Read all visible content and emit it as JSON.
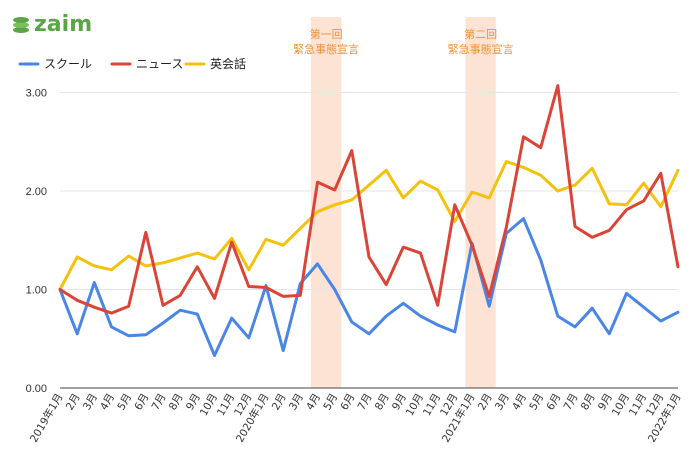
{
  "brand": {
    "name": "zaim"
  },
  "colors": {
    "school": "#4a86e8",
    "news": "#db4437",
    "eikaiwa": "#f4c20d",
    "band": "#fde3d4",
    "band_text": "#f0903a",
    "grid": "#e6e6e6",
    "logo": "#5aa545"
  },
  "chart_data": {
    "type": "line",
    "categories": [
      "2019年1月",
      "2月",
      "3月",
      "4月",
      "5月",
      "6月",
      "7月",
      "8月",
      "9月",
      "10月",
      "11月",
      "12月",
      "2020年1月",
      "2月",
      "3月",
      "4月",
      "5月",
      "6月",
      "7月",
      "8月",
      "9月",
      "10月",
      "11月",
      "12月",
      "2021年1月",
      "2月",
      "3月",
      "4月",
      "5月",
      "6月",
      "7月",
      "8月",
      "9月",
      "10月",
      "11月",
      "12月",
      "2022年1月"
    ],
    "series": [
      {
        "name": "スクール",
        "color": "#4a86e8",
        "values": [
          1.0,
          0.55,
          1.07,
          0.62,
          0.53,
          0.54,
          0.66,
          0.79,
          0.75,
          0.33,
          0.71,
          0.51,
          1.04,
          0.38,
          1.06,
          1.26,
          1.0,
          0.67,
          0.55,
          0.73,
          0.86,
          0.73,
          0.64,
          0.57,
          1.47,
          0.83,
          1.57,
          1.72,
          1.3,
          0.73,
          0.62,
          0.81,
          0.55,
          0.96,
          0.82,
          0.68,
          0.77
        ]
      },
      {
        "name": "ニュース",
        "color": "#db4437",
        "values": [
          1.0,
          0.89,
          0.82,
          0.76,
          0.83,
          1.58,
          0.84,
          0.94,
          1.23,
          0.91,
          1.48,
          1.03,
          1.02,
          0.93,
          0.94,
          2.09,
          2.01,
          2.41,
          1.33,
          1.05,
          1.43,
          1.37,
          0.84,
          1.86,
          1.45,
          0.93,
          1.63,
          2.55,
          2.44,
          3.07,
          1.64,
          1.53,
          1.6,
          1.81,
          1.9,
          2.18,
          1.23
        ]
      },
      {
        "name": "英会話",
        "color": "#f4c20d",
        "values": [
          1.0,
          1.33,
          1.24,
          1.2,
          1.34,
          1.24,
          1.27,
          1.32,
          1.37,
          1.31,
          1.52,
          1.2,
          1.51,
          1.45,
          1.62,
          1.79,
          1.86,
          1.91,
          2.06,
          2.21,
          1.93,
          2.1,
          2.01,
          1.69,
          1.99,
          1.93,
          2.3,
          2.24,
          2.16,
          2.0,
          2.06,
          2.23,
          1.87,
          1.86,
          2.08,
          1.84,
          2.21
        ]
      }
    ],
    "bands": [
      {
        "label_line1": "第一回",
        "label_line2": "緊急事態宣言",
        "start": 15,
        "end": 16
      },
      {
        "label_line1": "第二回",
        "label_line2": "緊急事態宣言",
        "start": 24,
        "end": 25
      }
    ],
    "yticks": [
      0,
      1,
      2,
      3
    ],
    "ytick_labels": [
      "0.00",
      "1.00",
      "2.00",
      "3.00"
    ],
    "ylim": [
      0,
      3.3
    ],
    "grid": true,
    "legend": "top-left"
  }
}
